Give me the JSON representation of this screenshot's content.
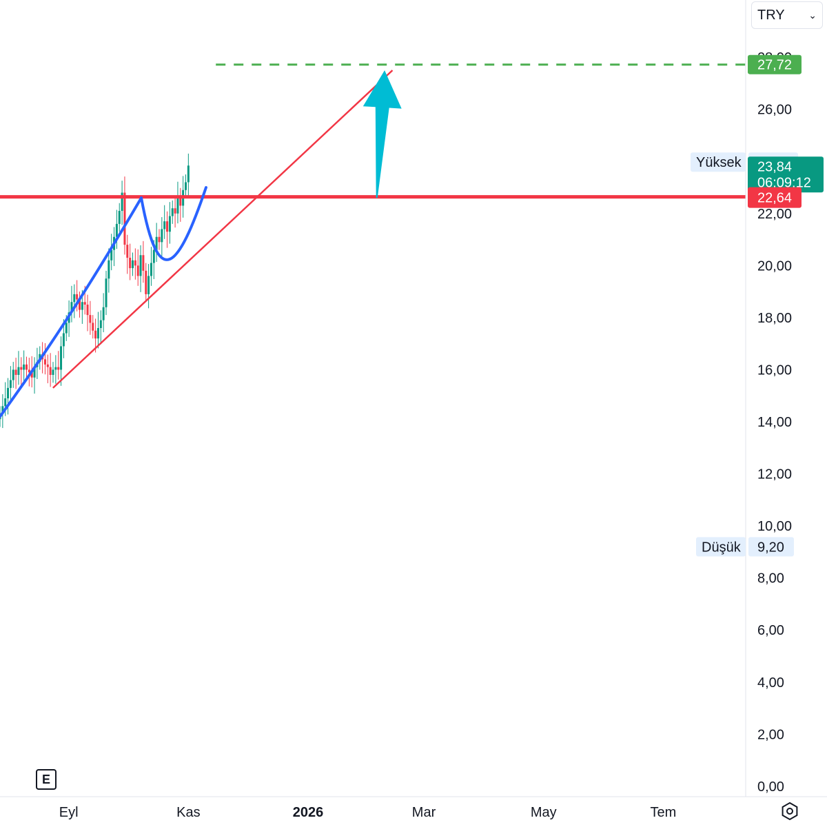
{
  "currency": {
    "label": "TRY"
  },
  "badge": {
    "label": "E"
  },
  "colors": {
    "up": "#089981",
    "down": "#f23645",
    "resistance": "#f23645",
    "trend": "#f23645",
    "arc": "#2962ff",
    "target": "#4caf50",
    "arrow": "#00bcd4",
    "price_tag": "#089981",
    "high_low_bg": "#e3effd"
  },
  "chart_data": {
    "type": "candlestick",
    "y_axis": {
      "ylim": [
        -0.4,
        30.2
      ],
      "ticks": [
        {
          "value": 28,
          "label": "28,00"
        },
        {
          "value": 26,
          "label": "26,00"
        },
        {
          "value": 24,
          "label": "24,00"
        },
        {
          "value": 22,
          "label": "22,00"
        },
        {
          "value": 20,
          "label": "20,00"
        },
        {
          "value": 18,
          "label": "18,00"
        },
        {
          "value": 16,
          "label": "16,00"
        },
        {
          "value": 14,
          "label": "14,00"
        },
        {
          "value": 12,
          "label": "12,00"
        },
        {
          "value": 10,
          "label": "10,00"
        },
        {
          "value": 8,
          "label": "8,00"
        },
        {
          "value": 6,
          "label": "6,00"
        },
        {
          "value": 4,
          "label": "4,00"
        },
        {
          "value": 2,
          "label": "2,00"
        },
        {
          "value": 0,
          "label": "0,00"
        }
      ]
    },
    "x_axis": {
      "xlim": [
        "2025-07-28",
        "2026-08-12"
      ],
      "ticks": [
        {
          "date": "2025-09-01",
          "label": "Eyl",
          "bold": false
        },
        {
          "date": "2025-11-01",
          "label": "Kas",
          "bold": false
        },
        {
          "date": "2026-01-01",
          "label": "2026",
          "bold": true
        },
        {
          "date": "2026-03-01",
          "label": "Mar",
          "bold": false
        },
        {
          "date": "2026-05-01",
          "label": "May",
          "bold": false
        },
        {
          "date": "2026-07-01",
          "label": "Tem",
          "bold": false
        }
      ]
    },
    "candles_start": "2025-07-28",
    "close": [
      14.3,
      14.6,
      14.9,
      15.3,
      15.6,
      16.0,
      15.8,
      16.1,
      16.0,
      16.2,
      16.0,
      15.9,
      15.7,
      16.1,
      16.3,
      16.6,
      16.4,
      16.2,
      16.1,
      15.8,
      16.0,
      16.1,
      16.0,
      16.9,
      17.4,
      17.8,
      18.2,
      18.6,
      18.9,
      18.7,
      18.3,
      18.6,
      18.5,
      18.1,
      17.8,
      17.5,
      17.2,
      17.6,
      17.9,
      18.4,
      19.5,
      20.2,
      20.6,
      21.1,
      21.6,
      22.1,
      22.8,
      20.8,
      20.3,
      19.9,
      20.2,
      20.0,
      19.6,
      20.4,
      19.8,
      18.9,
      19.6,
      20.1,
      20.6,
      21.1,
      20.9,
      21.4,
      21.7,
      21.3,
      21.9,
      22.2,
      22.0,
      22.6,
      22.3,
      22.9,
      23.2,
      23.84
    ],
    "price_labels": {
      "target": {
        "value": 27.72,
        "label": "27,72"
      },
      "current": {
        "value": 23.84,
        "label": "23,84",
        "countdown": "06:09:12"
      },
      "resistance": {
        "value": 22.64,
        "label": "22,64"
      },
      "high": {
        "label": "Yüksek",
        "value": 24.0,
        "value_label": "24,00"
      },
      "low": {
        "label": "Düşük",
        "value": 9.2,
        "value_label": "9,20"
      }
    },
    "drawings": {
      "resistance_line": {
        "value": 22.64
      },
      "target_line": {
        "value": 27.72,
        "from": "2025-11-15"
      },
      "trend_line": {
        "from": {
          "date": "2025-08-24",
          "value": 15.3
        },
        "to": {
          "date": "2026-02-13",
          "value": 27.5
        }
      },
      "arc_rise": {
        "points": [
          [
            "2025-07-28",
            14.2
          ],
          [
            "2025-08-20",
            16.6
          ],
          [
            "2025-09-10",
            19.0
          ],
          [
            "2025-10-08",
            22.6
          ]
        ]
      },
      "cup": {
        "points": [
          [
            "2025-10-08",
            22.6
          ],
          [
            "2025-10-17",
            18.9
          ],
          [
            "2025-10-27",
            19.9
          ],
          [
            "2025-11-10",
            23.0
          ]
        ]
      },
      "arrow": {
        "from": {
          "date": "2026-02-05",
          "value": 22.6
        },
        "to": {
          "date": "2026-02-09",
          "value": 27.5
        }
      }
    }
  }
}
